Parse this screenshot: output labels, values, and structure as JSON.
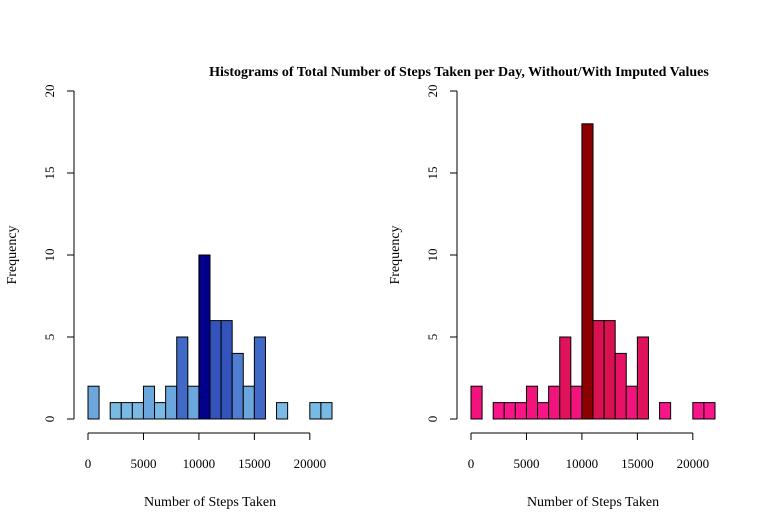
{
  "title": "Histograms of Total Number of Steps Taken per Day, Without/With Imputed Values",
  "chart_data": [
    {
      "type": "bar",
      "subtype": "histogram",
      "xlabel": "Number of Steps Taken",
      "ylabel": "Frequency",
      "xlim": [
        0,
        22000
      ],
      "ylim": [
        0,
        20
      ],
      "x_ticks": [
        "0",
        "5000",
        "10000",
        "15000",
        "20000"
      ],
      "y_ticks": [
        "0",
        "5",
        "10",
        "15",
        "20"
      ],
      "bin_width": 1000,
      "bin_starts": [
        0,
        1000,
        2000,
        3000,
        4000,
        5000,
        6000,
        7000,
        8000,
        9000,
        10000,
        11000,
        12000,
        13000,
        14000,
        15000,
        16000,
        17000,
        18000,
        19000,
        20000,
        21000
      ],
      "values": [
        2,
        0,
        1,
        1,
        1,
        2,
        1,
        2,
        5,
        2,
        10,
        6,
        6,
        4,
        2,
        5,
        0,
        1,
        0,
        0,
        1,
        1
      ],
      "colors": {
        "low": "#87CEEB",
        "mid": "#4169C8",
        "high": "#00008B"
      },
      "grid": false
    },
    {
      "type": "bar",
      "subtype": "histogram",
      "xlabel": "Number of Steps Taken",
      "ylabel": "Frequency",
      "xlim": [
        0,
        22000
      ],
      "ylim": [
        0,
        20
      ],
      "x_ticks": [
        "0",
        "5000",
        "10000",
        "15000",
        "20000"
      ],
      "y_ticks": [
        "0",
        "5",
        "10",
        "15",
        "20"
      ],
      "bin_width": 1000,
      "bin_starts": [
        0,
        1000,
        2000,
        3000,
        4000,
        5000,
        6000,
        7000,
        8000,
        9000,
        10000,
        11000,
        12000,
        13000,
        14000,
        15000,
        16000,
        17000,
        18000,
        19000,
        20000,
        21000
      ],
      "values": [
        2,
        0,
        1,
        1,
        1,
        2,
        1,
        2,
        5,
        2,
        18,
        6,
        6,
        4,
        2,
        5,
        0,
        1,
        0,
        0,
        1,
        1
      ],
      "colors": {
        "low": "#FF1493",
        "mid": "#C8102E",
        "high": "#8B0000"
      },
      "grid": false
    }
  ]
}
